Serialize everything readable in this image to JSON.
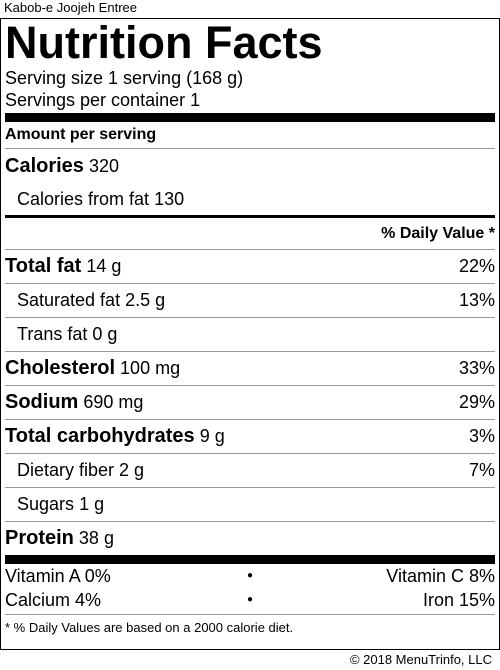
{
  "item_title": "Kabob-e Joojeh Entree",
  "header": {
    "title": "Nutrition Facts",
    "serving_size": "Serving size 1 serving (168 g)",
    "servings_per_container": "Servings per container 1"
  },
  "amount_per_serving": "Amount per serving",
  "calories": {
    "label": "Calories",
    "value": "320"
  },
  "calories_from_fat": {
    "label": "Calories from fat",
    "value": "130"
  },
  "daily_value_header": "% Daily Value *",
  "nutrients": [
    {
      "label": "Total fat",
      "amount": "14 g",
      "dv": "22%"
    },
    {
      "label": "Saturated fat",
      "amount": "2.5 g",
      "dv": "13%"
    },
    {
      "label": "Trans fat",
      "amount": "0 g",
      "dv": ""
    },
    {
      "label": "Cholesterol",
      "amount": "100 mg",
      "dv": "33%"
    },
    {
      "label": "Sodium",
      "amount": "690 mg",
      "dv": "29%"
    },
    {
      "label": "Total carbohydrates",
      "amount": "9 g",
      "dv": "3%"
    },
    {
      "label": "Dietary fiber",
      "amount": "2 g",
      "dv": "7%"
    },
    {
      "label": "Sugars",
      "amount": "1 g",
      "dv": ""
    },
    {
      "label": "Protein",
      "amount": "38 g",
      "dv": ""
    }
  ],
  "vitamins": [
    {
      "left": "Vitamin A 0%",
      "bullet": "●",
      "right": "Vitamin C 8%"
    },
    {
      "left": "Calcium 4%",
      "bullet": "●",
      "right": "Iron 15%"
    }
  ],
  "footnote": "* % Daily Values are based on a 2000 calorie diet.",
  "credit": "© 2018 MenuTrinfo, LLC"
}
